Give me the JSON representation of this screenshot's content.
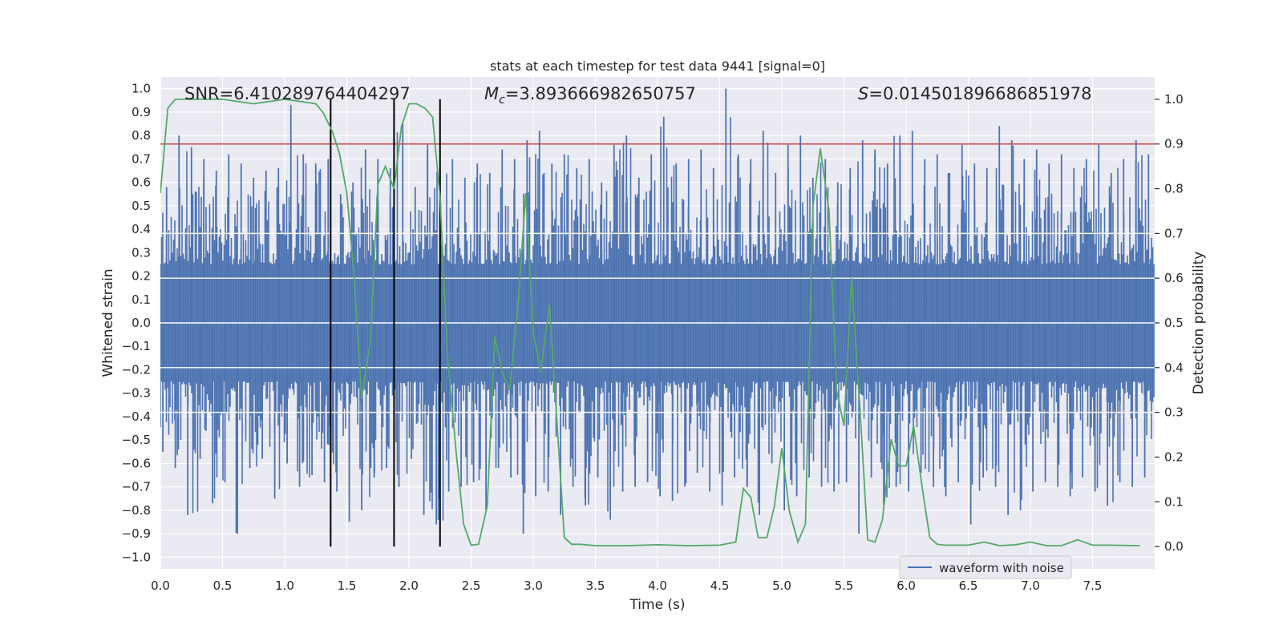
{
  "chart_data": {
    "type": "line",
    "title": "stats at each timestep for test data 9441 [signal=0]",
    "xlabel": "Time (s)",
    "ylabel": "Whitened strain",
    "y2label": "Detection probability",
    "xlim": [
      0.0,
      8.0
    ],
    "ylim": [
      -1.05,
      1.05
    ],
    "y2lim": [
      -0.05,
      1.05
    ],
    "x_ticks": [
      "0.0",
      "0.5",
      "1.0",
      "1.5",
      "2.0",
      "2.5",
      "3.0",
      "3.5",
      "4.0",
      "4.5",
      "5.0",
      "5.5",
      "6.0",
      "6.5",
      "7.0",
      "7.5"
    ],
    "y_ticks": [
      "1.0",
      "0.9",
      "0.8",
      "0.7",
      "0.6",
      "0.5",
      "0.4",
      "0.3",
      "0.2",
      "0.1",
      "0.0",
      "−0.1",
      "−0.2",
      "−0.3",
      "−0.4",
      "−0.5",
      "−0.6",
      "−0.7",
      "−0.8",
      "−0.9",
      "−1.0"
    ],
    "y2_ticks": [
      "1.0",
      "0.9",
      "0.8",
      "0.7",
      "0.6",
      "0.5",
      "0.4",
      "0.3",
      "0.2",
      "0.1",
      "0.0"
    ],
    "grid": true,
    "legend_position": "lower-right",
    "annotations": {
      "snr": "SNR=6.410289764404297",
      "mc_symbol": "M",
      "mc_sub": "c",
      "mc_value": "=3.893666982650757",
      "s_symbol": "S",
      "s_value": "=0.014501896686851978"
    },
    "threshold": {
      "axis": "y2",
      "value": 0.9,
      "color": "#c44e52"
    },
    "vertical_markers": {
      "x": [
        1.37,
        1.88,
        2.25
      ],
      "y2_from": 0.0,
      "y2_to": 1.0,
      "color": "#000000"
    },
    "series": [
      {
        "name": "waveform with noise",
        "axis": "y",
        "color": "#4c72b0",
        "envelope_x_step": 0.1,
        "upper_envelope": [
          0.58,
          0.8,
          0.75,
          0.7,
          0.65,
          0.72,
          0.68,
          0.62,
          0.65,
          0.66,
          0.93,
          0.72,
          0.68,
          0.7,
          0.55,
          0.6,
          0.74,
          0.7,
          0.66,
          0.85,
          0.58,
          0.76,
          0.66,
          0.7,
          0.62,
          0.68,
          0.64,
          0.74,
          0.7,
          0.78,
          0.82,
          0.68,
          0.72,
          0.66,
          0.7,
          0.6,
          0.76,
          0.8,
          0.62,
          0.72,
          0.88,
          0.68,
          0.7,
          0.74,
          0.66,
          1.0,
          0.72,
          0.7,
          0.82,
          0.64,
          0.76,
          0.8,
          0.62,
          0.7,
          0.6,
          0.66,
          0.78,
          0.74,
          0.68,
          0.8,
          0.82,
          0.7,
          0.72,
          0.64,
          0.76,
          0.68,
          0.66,
          0.84,
          0.78,
          0.7,
          0.74,
          0.68,
          0.72,
          0.66,
          0.7,
          0.76,
          0.64,
          0.7,
          0.78,
          0.72
        ],
        "lower_envelope": [
          -0.55,
          -0.62,
          -0.82,
          -0.58,
          -0.77,
          -0.68,
          -0.9,
          -0.62,
          -0.58,
          -0.75,
          -0.6,
          -0.7,
          -0.65,
          -0.68,
          -0.72,
          -0.85,
          -0.8,
          -0.66,
          -0.62,
          -0.7,
          -0.58,
          -0.82,
          -0.86,
          -0.72,
          -0.7,
          -0.68,
          -0.8,
          -0.62,
          -0.66,
          -0.9,
          -0.74,
          -0.72,
          -0.82,
          -0.7,
          -0.78,
          -0.66,
          -0.84,
          -0.72,
          -0.7,
          -0.68,
          -0.74,
          -0.76,
          -0.7,
          -0.64,
          -0.72,
          -0.78,
          -0.66,
          -0.7,
          -0.82,
          -0.6,
          -0.8,
          -0.74,
          -0.66,
          -0.7,
          -0.72,
          -0.68,
          -0.9,
          -0.66,
          -0.78,
          -0.7,
          -0.72,
          -0.64,
          -0.7,
          -0.74,
          -0.68,
          -0.86,
          -0.66,
          -0.7,
          -0.82,
          -0.8,
          -0.72,
          -0.68,
          -0.7,
          -0.74,
          -0.66,
          -0.72,
          -0.78,
          -0.68,
          -0.7,
          -0.66
        ]
      },
      {
        "name": "detection probability",
        "axis": "y2",
        "color": "#55a868",
        "x": [
          0.0,
          0.06,
          0.12,
          0.25,
          0.5,
          0.75,
          1.0,
          1.25,
          1.31,
          1.38,
          1.44,
          1.5,
          1.56,
          1.62,
          1.69,
          1.75,
          1.81,
          1.88,
          1.94,
          2.0,
          2.06,
          2.13,
          2.19,
          2.25,
          2.31,
          2.38,
          2.44,
          2.5,
          2.56,
          2.63,
          2.69,
          2.75,
          2.81,
          2.88,
          2.94,
          3.0,
          3.06,
          3.13,
          3.19,
          3.25,
          3.31,
          3.38,
          3.5,
          3.75,
          4.0,
          4.25,
          4.5,
          4.63,
          4.69,
          4.75,
          4.81,
          4.88,
          4.94,
          5.0,
          5.06,
          5.13,
          5.19,
          5.25,
          5.31,
          5.38,
          5.44,
          5.5,
          5.56,
          5.63,
          5.69,
          5.75,
          5.81,
          5.88,
          5.94,
          6.0,
          6.06,
          6.13,
          6.19,
          6.25,
          6.31,
          6.5,
          6.63,
          6.75,
          6.88,
          7.0,
          7.13,
          7.25,
          7.38,
          7.5,
          7.63,
          7.88
        ],
        "y": [
          0.79,
          0.98,
          1.0,
          1.0,
          1.0,
          0.99,
          1.0,
          0.99,
          0.97,
          0.93,
          0.88,
          0.79,
          0.6,
          0.33,
          0.46,
          0.81,
          0.85,
          0.8,
          0.94,
          0.99,
          0.99,
          0.98,
          0.96,
          0.78,
          0.43,
          0.21,
          0.05,
          0.003,
          0.005,
          0.09,
          0.47,
          0.39,
          0.35,
          0.55,
          0.79,
          0.48,
          0.39,
          0.54,
          0.28,
          0.02,
          0.005,
          0.005,
          0.002,
          0.002,
          0.004,
          0.002,
          0.003,
          0.01,
          0.13,
          0.11,
          0.02,
          0.02,
          0.09,
          0.22,
          0.08,
          0.01,
          0.05,
          0.76,
          0.89,
          0.75,
          0.35,
          0.27,
          0.6,
          0.3,
          0.015,
          0.01,
          0.06,
          0.24,
          0.18,
          0.18,
          0.27,
          0.13,
          0.02,
          0.005,
          0.003,
          0.003,
          0.01,
          0.002,
          0.004,
          0.01,
          0.002,
          0.002,
          0.015,
          0.003,
          0.003,
          0.002
        ]
      }
    ]
  }
}
